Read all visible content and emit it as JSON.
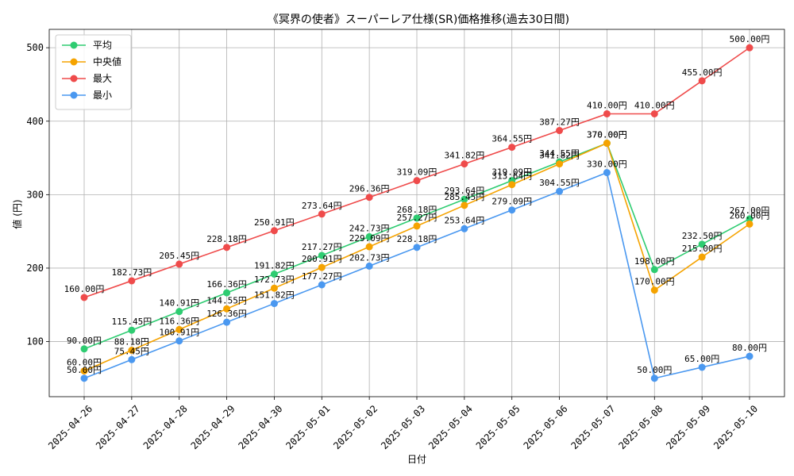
{
  "chart_data": {
    "type": "line",
    "title": "《冥界の使者》スーパーレア仕様(SR)価格推移(過去30日間)",
    "xlabel": "日付",
    "ylabel": "値 (円)",
    "ylim": [
      25,
      525
    ],
    "yticks": [
      100,
      200,
      300,
      400,
      500
    ],
    "grid": true,
    "legend_position": "top-left",
    "value_suffix": "円",
    "categories": [
      "2025-04-26",
      "2025-04-27",
      "2025-04-28",
      "2025-04-29",
      "2025-04-30",
      "2025-05-01",
      "2025-05-02",
      "2025-05-03",
      "2025-05-04",
      "2025-05-05",
      "2025-05-06",
      "2025-05-07",
      "2025-05-08",
      "2025-05-09",
      "2025-05-10"
    ],
    "series": [
      {
        "name": "平均",
        "color": "#2ecc71",
        "values": [
          90.0,
          115.45,
          140.91,
          166.36,
          191.82,
          217.27,
          242.73,
          268.18,
          293.64,
          319.09,
          344.55,
          370.0,
          198.0,
          232.5,
          267.0
        ]
      },
      {
        "name": "中央値",
        "color": "#f5a300",
        "values": [
          60.0,
          88.18,
          116.36,
          144.55,
          172.73,
          200.91,
          229.09,
          257.27,
          285.45,
          313.64,
          341.82,
          370.0,
          170.0,
          215.0,
          260.0
        ]
      },
      {
        "name": "最大",
        "color": "#ef4b4b",
        "values": [
          160.0,
          182.73,
          205.45,
          228.18,
          250.91,
          273.64,
          296.36,
          319.09,
          341.82,
          364.55,
          387.27,
          410.0,
          410.0,
          455.0,
          500.0
        ]
      },
      {
        "name": "最小",
        "color": "#4a98f0",
        "values": [
          50.0,
          75.45,
          100.91,
          126.36,
          151.82,
          177.27,
          202.73,
          228.18,
          253.64,
          279.09,
          304.55,
          330.0,
          50.0,
          65.0,
          80.0
        ]
      }
    ]
  }
}
